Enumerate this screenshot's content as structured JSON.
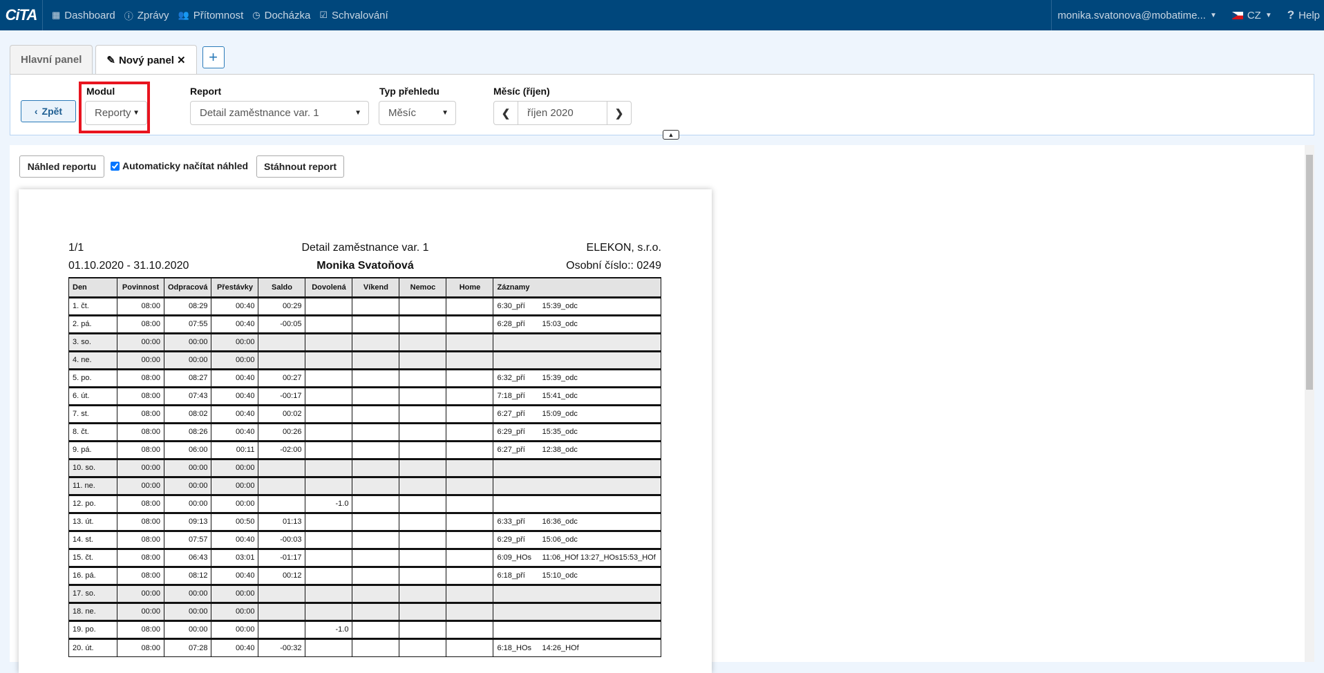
{
  "nav": {
    "logo": "CiTA",
    "items": [
      {
        "icon": "grid-icon",
        "label": "Dashboard"
      },
      {
        "icon": "info-icon",
        "label": "Zprávy"
      },
      {
        "icon": "users-icon",
        "label": "Přítomnost"
      },
      {
        "icon": "clock-icon",
        "label": "Docházka"
      },
      {
        "icon": "check-square-icon",
        "label": "Schvalování"
      }
    ],
    "user": "monika.svatonova@mobatime...",
    "lang": "CZ",
    "help": "Help"
  },
  "tabs": [
    {
      "label": "Hlavní panel"
    },
    {
      "label": "Nový panel",
      "close": "✕"
    }
  ],
  "add_tab": "+",
  "filters": {
    "back": "Zpět",
    "modul_label": "Modul",
    "modul_value": "Reporty",
    "report_label": "Report",
    "report_value": "Detail zaměstnance var. 1",
    "typ_label": "Typ přehledu",
    "typ_value": "Měsíc",
    "mesic_label": "Měsíc (říjen)",
    "mesic_value": "říjen 2020"
  },
  "toolbar": {
    "preview": "Náhled reportu",
    "auto": "Automaticky načítat náhled",
    "auto_checked": true,
    "download": "Stáhnout report"
  },
  "report": {
    "page": "1/1",
    "title": "Detail zaměstnance var. 1",
    "company": "ELEKON, s.r.o.",
    "period": "01.10.2020 - 31.10.2020",
    "employee": "Monika Svatoňová",
    "personal_no": "Osobní číslo:: 0249",
    "columns": [
      "Den",
      "Povinnost",
      "Odpracová",
      "Přestávky",
      "Saldo",
      "Dovolená",
      "Víkend",
      "Nemoc",
      "Home",
      "Záznamy"
    ],
    "rows": [
      [
        "1. čt.",
        "08:00",
        "08:29",
        "00:40",
        "00:29",
        "",
        "",
        "",
        "",
        [
          "6:30_pří",
          "15:39_odc"
        ],
        false
      ],
      [
        "2. pá.",
        "08:00",
        "07:55",
        "00:40",
        "-00:05",
        "",
        "",
        "",
        "",
        [
          "6:28_pří",
          "15:03_odc"
        ],
        false
      ],
      [
        "3. so.",
        "00:00",
        "00:00",
        "00:00",
        "",
        "",
        "",
        "",
        "",
        [],
        true
      ],
      [
        "4. ne.",
        "00:00",
        "00:00",
        "00:00",
        "",
        "",
        "",
        "",
        "",
        [],
        true
      ],
      [
        "5. po.",
        "08:00",
        "08:27",
        "00:40",
        "00:27",
        "",
        "",
        "",
        "",
        [
          "6:32_pří",
          "15:39_odc"
        ],
        false
      ],
      [
        "6. út.",
        "08:00",
        "07:43",
        "00:40",
        "-00:17",
        "",
        "",
        "",
        "",
        [
          "7:18_pří",
          "15:41_odc"
        ],
        false
      ],
      [
        "7. st.",
        "08:00",
        "08:02",
        "00:40",
        "00:02",
        "",
        "",
        "",
        "",
        [
          "6:27_pří",
          "15:09_odc"
        ],
        false
      ],
      [
        "8. čt.",
        "08:00",
        "08:26",
        "00:40",
        "00:26",
        "",
        "",
        "",
        "",
        [
          "6:29_pří",
          "15:35_odc"
        ],
        false
      ],
      [
        "9. pá.",
        "08:00",
        "06:00",
        "00:11",
        "-02:00",
        "",
        "",
        "",
        "",
        [
          "6:27_pří",
          "12:38_odc"
        ],
        false
      ],
      [
        "10. so.",
        "00:00",
        "00:00",
        "00:00",
        "",
        "",
        "",
        "",
        "",
        [],
        true
      ],
      [
        "11. ne.",
        "00:00",
        "00:00",
        "00:00",
        "",
        "",
        "",
        "",
        "",
        [],
        true
      ],
      [
        "12. po.",
        "08:00",
        "00:00",
        "00:00",
        "",
        "-1.0",
        "",
        "",
        "",
        [],
        false
      ],
      [
        "13. út.",
        "08:00",
        "09:13",
        "00:50",
        "01:13",
        "",
        "",
        "",
        "",
        [
          "6:33_pří",
          "16:36_odc"
        ],
        false
      ],
      [
        "14. st.",
        "08:00",
        "07:57",
        "00:40",
        "-00:03",
        "",
        "",
        "",
        "",
        [
          "6:29_pří",
          "15:06_odc"
        ],
        false
      ],
      [
        "15. čt.",
        "08:00",
        "06:43",
        "03:01",
        "-01:17",
        "",
        "",
        "",
        "",
        [
          "6:09_HOs",
          "11:06_HOf",
          "13:27_HOs",
          "15:53_HOf"
        ],
        false
      ],
      [
        "16. pá.",
        "08:00",
        "08:12",
        "00:40",
        "00:12",
        "",
        "",
        "",
        "",
        [
          "6:18_pří",
          "15:10_odc"
        ],
        false
      ],
      [
        "17. so.",
        "00:00",
        "00:00",
        "00:00",
        "",
        "",
        "",
        "",
        "",
        [],
        true
      ],
      [
        "18. ne.",
        "00:00",
        "00:00",
        "00:00",
        "",
        "",
        "",
        "",
        "",
        [],
        true
      ],
      [
        "19. po.",
        "08:00",
        "00:00",
        "00:00",
        "",
        "-1.0",
        "",
        "",
        "",
        [],
        false
      ],
      [
        "20. út.",
        "08:00",
        "07:28",
        "00:40",
        "-00:32",
        "",
        "",
        "",
        "",
        [
          "6:18_HOs",
          "14:26_HOf"
        ],
        false
      ]
    ]
  },
  "colors": {
    "nav": "#00477c",
    "highlight": "#e8141f",
    "weekend_row": "#ebebeb"
  }
}
